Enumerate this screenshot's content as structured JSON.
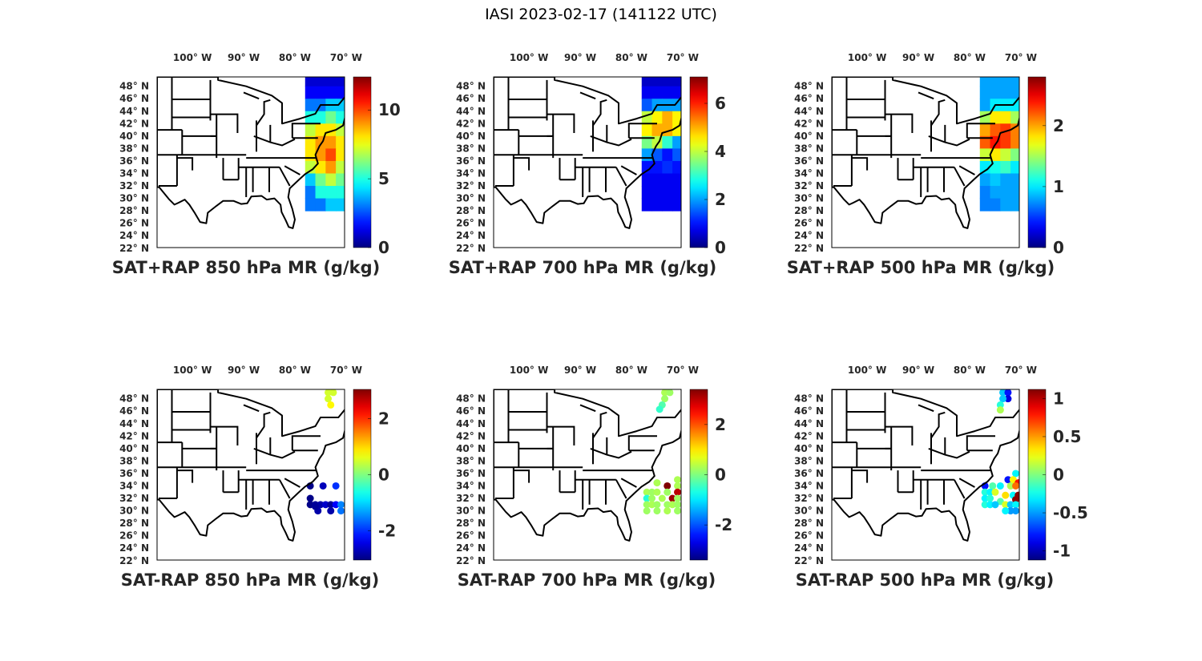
{
  "title": "IASI 2023-02-17 (141122 UTC)",
  "colors": {
    "map_line": "#000000",
    "text": "#262626"
  },
  "chart_data": [
    {
      "type": "scatter",
      "title": "SAT+RAP 850 hPa MR (g/kg)",
      "xlabel_ticks": [
        "100° W",
        "90° W",
        "80° W",
        "70° W"
      ],
      "ylabel_ticks": [
        "48° N",
        "46° N",
        "44° N",
        "42° N",
        "40° N",
        "38° N",
        "36° N",
        "34° N",
        "32° N",
        "30° N",
        "28° N",
        "26° N",
        "24° N",
        "22° N"
      ],
      "colorbar": {
        "range": [
          0,
          12.4
        ],
        "ticks": [
          0,
          5,
          10
        ],
        "tick_labels": [
          "0",
          "5",
          "10"
        ],
        "colormap": "jet"
      },
      "grid": {
        "lats": [
          49,
          47,
          45,
          43,
          41,
          39,
          37,
          35,
          33,
          31,
          29
        ],
        "lons": [
          -77,
          -75,
          -73,
          -71
        ],
        "values": [
          [
            1,
            1,
            1,
            1
          ],
          [
            1.5,
            1.5,
            1.5,
            1.5
          ],
          [
            3,
            3,
            4,
            4
          ],
          [
            5,
            5,
            6,
            5
          ],
          [
            7,
            8,
            8,
            7
          ],
          [
            8,
            9,
            9,
            8
          ],
          [
            8,
            9,
            10,
            8
          ],
          [
            7,
            8,
            9,
            7
          ],
          [
            4,
            6,
            7,
            6
          ],
          [
            3,
            5,
            5,
            5
          ],
          [
            3,
            3,
            4,
            4
          ]
        ]
      }
    },
    {
      "type": "scatter",
      "title": "SAT+RAP 700 hPa MR (g/kg)",
      "xlabel_ticks": [
        "100° W",
        "90° W",
        "80° W",
        "70° W"
      ],
      "ylabel_ticks": [
        "48° N",
        "46° N",
        "44° N",
        "42° N",
        "40° N",
        "38° N",
        "36° N",
        "34° N",
        "32° N",
        "30° N",
        "28° N",
        "26° N",
        "24° N",
        "22° N"
      ],
      "colorbar": {
        "range": [
          0,
          7.1
        ],
        "ticks": [
          0,
          2,
          4,
          6
        ],
        "tick_labels": [
          "0",
          "2",
          "4",
          "6"
        ],
        "colormap": "jet"
      },
      "grid": {
        "lats": [
          49,
          47,
          45,
          43,
          41,
          39,
          37,
          35,
          33,
          31,
          29
        ],
        "lons": [
          -77,
          -75,
          -73,
          -71
        ],
        "values": [
          [
            0.5,
            0.5,
            0.5,
            0.5
          ],
          [
            0.8,
            0.8,
            0.8,
            0.8
          ],
          [
            1.5,
            2,
            2,
            2
          ],
          [
            4,
            4.5,
            5,
            4.5
          ],
          [
            4.5,
            5,
            5,
            4.5
          ],
          [
            3.5,
            4,
            3,
            2
          ],
          [
            2,
            1.5,
            1,
            1.5
          ],
          [
            1,
            1,
            1.2,
            1
          ],
          [
            0.8,
            0.8,
            0.8,
            0.8
          ],
          [
            0.8,
            0.8,
            0.8,
            0.8
          ],
          [
            0.8,
            0.8,
            0.8,
            0.8
          ]
        ]
      }
    },
    {
      "type": "scatter",
      "title": "SAT+RAP 500 hPa MR (g/kg)",
      "xlabel_ticks": [
        "100° W",
        "90° W",
        "80° W",
        "70° W"
      ],
      "ylabel_ticks": [
        "48° N",
        "46° N",
        "44° N",
        "42° N",
        "40° N",
        "38° N",
        "36° N",
        "34° N",
        "32° N",
        "30° N",
        "28° N",
        "26° N",
        "24° N",
        "22° N"
      ],
      "colorbar": {
        "range": [
          0,
          2.8
        ],
        "ticks": [
          0,
          1,
          2
        ],
        "tick_labels": [
          "0",
          "1",
          "2"
        ],
        "colormap": "jet"
      },
      "grid": {
        "lats": [
          49,
          47,
          45,
          43,
          41,
          39,
          37,
          35,
          33,
          31,
          29
        ],
        "lons": [
          -77,
          -75,
          -73,
          -71
        ],
        "values": [
          [
            0.8,
            0.8,
            0.8,
            0.8
          ],
          [
            0.8,
            0.8,
            0.8,
            0.8
          ],
          [
            0.8,
            1,
            1,
            1
          ],
          [
            1.5,
            1.8,
            1.8,
            1.5
          ],
          [
            2,
            2.2,
            2.3,
            2.1
          ],
          [
            2.2,
            2.4,
            2.3,
            2.1
          ],
          [
            1.6,
            1.8,
            1.6,
            1.4
          ],
          [
            1,
            1.1,
            1.2,
            1
          ],
          [
            0.8,
            0.9,
            0.8,
            0.8
          ],
          [
            0.7,
            0.8,
            0.8,
            0.8
          ],
          [
            0.7,
            0.7,
            0.8,
            0.8
          ]
        ]
      }
    },
    {
      "type": "scatter",
      "title": "SAT-RAP 850 hPa MR (g/kg)",
      "xlabel_ticks": [
        "100° W",
        "90° W",
        "80° W",
        "70° W"
      ],
      "ylabel_ticks": [
        "48° N",
        "46° N",
        "44° N",
        "42° N",
        "40° N",
        "38° N",
        "36° N",
        "34° N",
        "32° N",
        "30° N",
        "28° N",
        "26° N",
        "24° N",
        "22° N"
      ],
      "colorbar": {
        "range": [
          -3.05,
          3.05
        ],
        "ticks": [
          -2,
          0,
          2
        ],
        "tick_labels": [
          "-2",
          "0",
          "2"
        ],
        "colormap": "jet"
      },
      "points": [
        [
          -73.5,
          49,
          0.5
        ],
        [
          -72.5,
          49,
          0.5
        ],
        [
          -73.5,
          48,
          0.5
        ],
        [
          -73,
          47,
          0.8
        ],
        [
          -77,
          34,
          -3
        ],
        [
          -74.5,
          34,
          -2.7
        ],
        [
          -72,
          34,
          -2
        ],
        [
          -77,
          32,
          -3
        ],
        [
          -77,
          31,
          -3
        ],
        [
          -76,
          31,
          -2.9
        ],
        [
          -75,
          31,
          -2.8
        ],
        [
          -74,
          31,
          -2.6
        ],
        [
          -73,
          31,
          -2.9
        ],
        [
          -72,
          31,
          -2.3
        ],
        [
          -71,
          31,
          -1.5
        ],
        [
          -75.5,
          30,
          -2.8
        ],
        [
          -73,
          30,
          -2.8
        ],
        [
          -71,
          30,
          -1.6
        ],
        [
          -76,
          30.7,
          -2.9
        ]
      ]
    },
    {
      "type": "scatter",
      "title": "SAT-RAP 700 hPa MR (g/kg)",
      "xlabel_ticks": [
        "100° W",
        "90° W",
        "80° W",
        "70° W"
      ],
      "ylabel_ticks": [
        "48° N",
        "46° N",
        "44° N",
        "42° N",
        "40° N",
        "38° N",
        "36° N",
        "34° N",
        "32° N",
        "30° N",
        "28° N",
        "26° N",
        "24° N",
        "22° N"
      ],
      "colorbar": {
        "range": [
          -3.4,
          3.4
        ],
        "ticks": [
          -2,
          0,
          2
        ],
        "tick_labels": [
          "-2",
          "0",
          "2"
        ],
        "colormap": "jet"
      },
      "points": [
        [
          -73.5,
          49,
          0.3
        ],
        [
          -72.5,
          49,
          0.2
        ],
        [
          -73.5,
          48,
          0.2
        ],
        [
          -74,
          47,
          -0.3
        ],
        [
          -74.5,
          46.3,
          -0.5
        ],
        [
          -75,
          34.5,
          0.3
        ],
        [
          -73,
          34,
          3.4
        ],
        [
          -71,
          35,
          0.3
        ],
        [
          -71,
          34,
          0.3
        ],
        [
          -77,
          33,
          0.3
        ],
        [
          -76,
          33,
          0.2
        ],
        [
          -75,
          33,
          0.3
        ],
        [
          -73,
          33,
          0.2
        ],
        [
          -71,
          33,
          3
        ],
        [
          -77,
          32,
          -0.6
        ],
        [
          -76,
          32,
          0.2
        ],
        [
          -74,
          32,
          0.3
        ],
        [
          -72,
          32,
          3.2
        ],
        [
          -71,
          32,
          0.2
        ],
        [
          -77,
          31,
          0.2
        ],
        [
          -76,
          31,
          0.3
        ],
        [
          -75,
          31,
          0.2
        ],
        [
          -73,
          31,
          0.2
        ],
        [
          -72,
          31,
          0.3
        ],
        [
          -71,
          31,
          0.2
        ],
        [
          -77,
          30,
          0.2
        ],
        [
          -75,
          30,
          0.2
        ],
        [
          -73,
          30,
          0.3
        ],
        [
          -71,
          30,
          0.2
        ]
      ]
    },
    {
      "type": "scatter",
      "title": "SAT-RAP 500 hPa MR (g/kg)",
      "xlabel_ticks": [
        "100° W",
        "90° W",
        "80° W",
        "70° W"
      ],
      "ylabel_ticks": [
        "48° N",
        "46° N",
        "44° N",
        "42° N",
        "40° N",
        "38° N",
        "36° N",
        "34° N",
        "32° N",
        "30° N",
        "28° N",
        "26° N",
        "24° N",
        "22° N"
      ],
      "colorbar": {
        "range": [
          -1.12,
          1.12
        ],
        "ticks": [
          -1,
          -0.5,
          0,
          0.5,
          1
        ],
        "tick_labels": [
          "-1",
          "-0.5",
          "0",
          "0.5",
          "1"
        ],
        "colormap": "jet"
      },
      "points": [
        [
          -73.5,
          49,
          -0.4
        ],
        [
          -72.5,
          49,
          -0.8
        ],
        [
          -72.5,
          48,
          -0.9
        ],
        [
          -73.5,
          48,
          -0.4
        ],
        [
          -74,
          47,
          -0.2
        ],
        [
          -74,
          46.2,
          0.1
        ],
        [
          -71,
          36,
          -0.3
        ],
        [
          -72.5,
          35,
          -0.8
        ],
        [
          -71.5,
          35,
          0.3
        ],
        [
          -70.5,
          34.5,
          0.8
        ],
        [
          -77,
          34,
          -0.8
        ],
        [
          -75.5,
          34,
          -0.1
        ],
        [
          -74,
          34,
          -0.3
        ],
        [
          -72,
          34,
          0.1
        ],
        [
          -71,
          34,
          0.6
        ],
        [
          -77,
          33,
          -0.2
        ],
        [
          -76,
          33,
          -0.3
        ],
        [
          -75,
          33,
          0.2
        ],
        [
          -73,
          32.5,
          0.35
        ],
        [
          -71.5,
          32.5,
          -0.3
        ],
        [
          -70.5,
          32.5,
          1.1
        ],
        [
          -77,
          32,
          -0.3
        ],
        [
          -76,
          32,
          -0.2
        ],
        [
          -74,
          31.5,
          -0.1
        ],
        [
          -71,
          31.8,
          1.1
        ],
        [
          -77,
          31,
          -0.2
        ],
        [
          -76,
          31,
          -0.3
        ],
        [
          -75,
          31,
          -0.4
        ],
        [
          -73,
          31,
          0.2
        ],
        [
          -72,
          31,
          -0.4
        ],
        [
          -71,
          31,
          -0.3
        ],
        [
          -72,
          30,
          -0.5
        ],
        [
          -71,
          30,
          -0.5
        ],
        [
          -73,
          30,
          -0.3
        ]
      ]
    }
  ]
}
